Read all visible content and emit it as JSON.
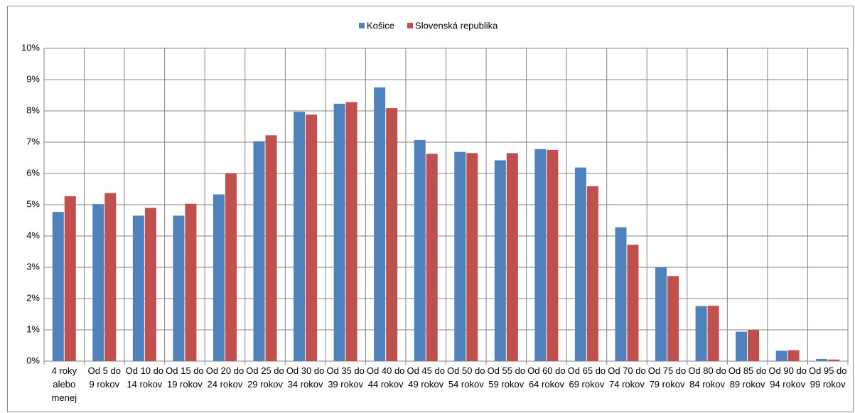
{
  "chart_data": {
    "type": "bar",
    "categories": [
      "4 roky alebo menej",
      "Od 5 do 9 rokov",
      "Od 10 do 14 rokov",
      "Od 15 do 19 rokov",
      "Od 20 do 24 rokov",
      "Od 25 do 29 rokov",
      "Od 30 do 34 rokov",
      "Od 35 do 39 rokov",
      "Od 40 do 44 rokov",
      "Od 45 do 49 rokov",
      "Od 50 do 54 rokov",
      "Od 55 do 59 rokov",
      "Od 60 do 64 rokov",
      "Od 65 do 69 rokov",
      "Od 70 do 74 rokov",
      "Od 75 do 79 rokov",
      "Od 80 do 84 rokov",
      "Od 85 do 89 rokov",
      "Od 90 do 94 rokov",
      "Od 95 do 99 rokov"
    ],
    "series": [
      {
        "name": "Košice",
        "color": "#4f81bd",
        "values": [
          4.77,
          5.02,
          4.65,
          4.65,
          5.33,
          7.03,
          7.97,
          8.23,
          8.75,
          7.07,
          6.69,
          6.42,
          6.78,
          6.19,
          4.28,
          3.0,
          1.76,
          0.94,
          0.33,
          0.07
        ]
      },
      {
        "name": "Slovenská republika",
        "color": "#c0504d",
        "values": [
          5.27,
          5.37,
          4.9,
          5.03,
          6.0,
          7.22,
          7.88,
          8.28,
          8.09,
          6.63,
          6.65,
          6.65,
          6.75,
          5.59,
          3.72,
          2.72,
          1.77,
          1.0,
          0.35,
          0.05
        ]
      }
    ],
    "ylim": [
      0,
      10
    ],
    "yticks": [
      {
        "value": 0,
        "label": "0%"
      },
      {
        "value": 1,
        "label": "1%"
      },
      {
        "value": 2,
        "label": "2%"
      },
      {
        "value": 3,
        "label": "3%"
      },
      {
        "value": 4,
        "label": "4%"
      },
      {
        "value": 5,
        "label": "5%"
      },
      {
        "value": 6,
        "label": "6%"
      },
      {
        "value": 7,
        "label": "7%"
      },
      {
        "value": 8,
        "label": "8%"
      },
      {
        "value": 9,
        "label": "9%"
      },
      {
        "value": 10,
        "label": "10%"
      }
    ],
    "grid": true,
    "legend": "top"
  }
}
